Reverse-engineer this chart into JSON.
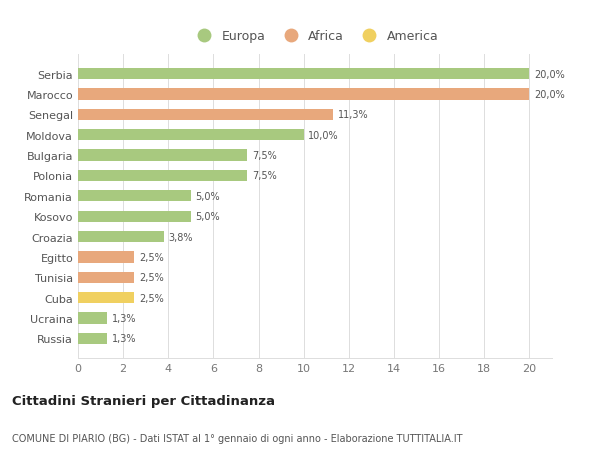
{
  "categories": [
    "Serbia",
    "Marocco",
    "Senegal",
    "Moldova",
    "Bulgaria",
    "Polonia",
    "Romania",
    "Kosovo",
    "Croazia",
    "Egitto",
    "Tunisia",
    "Cuba",
    "Ucraina",
    "Russia"
  ],
  "values": [
    20.0,
    20.0,
    11.3,
    10.0,
    7.5,
    7.5,
    5.0,
    5.0,
    3.8,
    2.5,
    2.5,
    2.5,
    1.3,
    1.3
  ],
  "labels": [
    "20,0%",
    "20,0%",
    "11,3%",
    "10,0%",
    "7,5%",
    "7,5%",
    "5,0%",
    "5,0%",
    "3,8%",
    "2,5%",
    "2,5%",
    "2,5%",
    "1,3%",
    "1,3%"
  ],
  "continents": [
    "Europa",
    "Africa",
    "Africa",
    "Europa",
    "Europa",
    "Europa",
    "Europa",
    "Europa",
    "Europa",
    "Africa",
    "Africa",
    "America",
    "Europa",
    "Europa"
  ],
  "colors": {
    "Europa": "#a8c97f",
    "Africa": "#e8a87c",
    "America": "#f0d060"
  },
  "xlim": [
    0,
    21
  ],
  "xticks": [
    0,
    2,
    4,
    6,
    8,
    10,
    12,
    14,
    16,
    18,
    20
  ],
  "title": "Cittadini Stranieri per Cittadinanza",
  "subtitle": "COMUNE DI PIARIO (BG) - Dati ISTAT al 1° gennaio di ogni anno - Elaborazione TUTTITALIA.IT",
  "background_color": "#ffffff",
  "grid_color": "#dddddd",
  "bar_height": 0.55
}
